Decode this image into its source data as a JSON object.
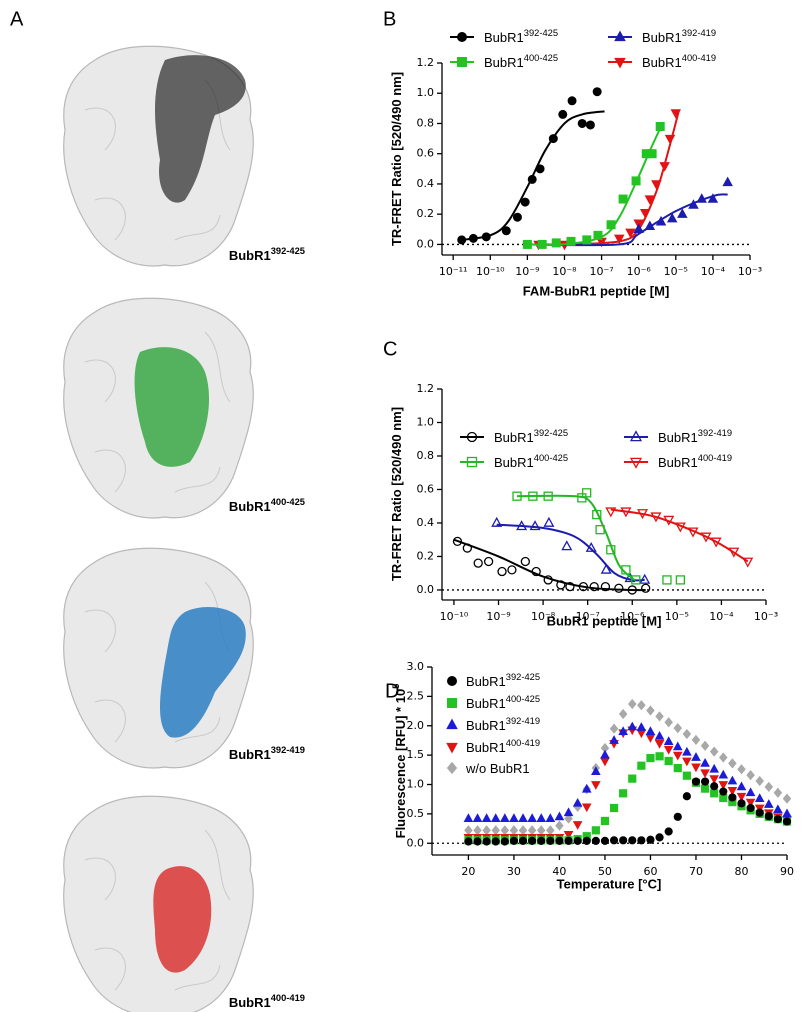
{
  "panel_a": {
    "panel_label": "A",
    "structures": [
      {
        "name": "BubR1",
        "superscript": "392-425",
        "color": "#1a1a1a"
      },
      {
        "name": "BubR1",
        "superscript": "400-425",
        "color": "#3aa845"
      },
      {
        "name": "BubR1",
        "superscript": "392-419",
        "color": "#2b7fc4"
      },
      {
        "name": "BubR1",
        "superscript": "400-419",
        "color": "#d93535"
      }
    ]
  },
  "chart_data": [
    {
      "type": "scatter",
      "panel_label": "B",
      "x_label": "FAM-BubR1 peptide [M]",
      "y_label": "TR-FRET Ratio [520/490 nm]",
      "xscale": "log",
      "xlim": [
        5e-12,
        0.001
      ],
      "ylim": [
        -0.07,
        1.2
      ],
      "zero_line": true,
      "filled": true,
      "xticks": [
        {
          "value": 1e-11,
          "label": "10⁻¹¹"
        },
        {
          "value": 1e-10,
          "label": "10⁻¹⁰"
        },
        {
          "value": 1e-09,
          "label": "10⁻⁹"
        },
        {
          "value": 1e-08,
          "label": "10⁻⁸"
        },
        {
          "value": 1e-07,
          "label": "10⁻⁷"
        },
        {
          "value": 1e-06,
          "label": "10⁻⁶"
        },
        {
          "value": 1e-05,
          "label": "10⁻⁵"
        },
        {
          "value": 0.0001,
          "label": "10⁻⁴"
        },
        {
          "value": 0.001,
          "label": "10⁻³"
        }
      ],
      "yticks": [
        {
          "value": 0,
          "label": "0.0"
        },
        0.2,
        0.4,
        0.6,
        0.8,
        {
          "value": 1,
          "label": "1.0"
        },
        1.2
      ],
      "series": [
        {
          "name": "BubR1",
          "name_superscript": "392-425",
          "color": "#000000",
          "marker": "circle",
          "x": [
            1.7e-11,
            3.5e-11,
            7.8e-11,
            2.7e-10,
            5.4e-10,
            8.7e-10,
            1.35e-09,
            2.2e-09,
            5e-09,
            9e-09,
            1.6e-08,
            3e-08,
            5e-08,
            7.6e-08
          ],
          "values": [
            0.03,
            0.04,
            0.05,
            0.09,
            0.18,
            0.28,
            0.43,
            0.5,
            0.7,
            0.86,
            0.95,
            0.8,
            0.79,
            1.01
          ],
          "fit": {
            "x": [
              1.7e-11,
              1e-10,
              3e-10,
              1e-09,
              3e-09,
              1e-08,
              3e-08,
              1.2e-07
            ],
            "values": [
              0.03,
              0.06,
              0.15,
              0.38,
              0.62,
              0.8,
              0.86,
              0.88
            ]
          }
        },
        {
          "name": "BubR1",
          "name_superscript": "400-425",
          "color": "#22c322",
          "marker": "square",
          "x": [
            1e-09,
            2.5e-09,
            6e-09,
            1.5e-08,
            4e-08,
            8e-08,
            1.8e-07,
            3.8e-07,
            8.5e-07,
            1.6e-06,
            2.3e-06,
            3.8e-06
          ],
          "values": [
            0.0,
            0.0,
            0.01,
            0.02,
            0.03,
            0.06,
            0.13,
            0.3,
            0.42,
            0.6,
            0.6,
            0.78
          ],
          "fit": {
            "x": [
              1e-09,
              1e-08,
              1e-07,
              3e-07,
              1e-06,
              2e-06,
              4e-06
            ],
            "values": [
              0.0,
              0.0,
              0.05,
              0.18,
              0.45,
              0.62,
              0.78
            ]
          }
        },
        {
          "name": "BubR1",
          "name_superscript": "392-419",
          "color": "#1c1cb0",
          "marker": "triangle-up",
          "x": [
            1e-06,
            2e-06,
            4e-06,
            8e-06,
            1.5e-05,
            3e-05,
            5e-05,
            0.0001,
            0.00025
          ],
          "values": [
            0.1,
            0.12,
            0.15,
            0.17,
            0.2,
            0.26,
            0.3,
            0.3,
            0.41
          ],
          "fit": {
            "x": [
              1e-09,
              3e-07,
              1e-06,
              1e-05,
              0.0001,
              0.00025
            ],
            "values": [
              0.0,
              0.0,
              0.07,
              0.22,
              0.32,
              0.33
            ]
          }
        },
        {
          "name": "BubR1",
          "name_superscript": "400-419",
          "color": "#e01414",
          "marker": "triangle-down",
          "x": [
            2e-09,
            1e-08,
            1e-07,
            3e-07,
            6e-07,
            1e-06,
            1.5e-06,
            2e-06,
            3e-06,
            5e-06,
            7e-06,
            1e-05
          ],
          "values": [
            0.0,
            0.0,
            0.02,
            0.04,
            0.08,
            0.14,
            0.21,
            0.3,
            0.4,
            0.52,
            0.7,
            0.87
          ],
          "fit": {
            "x": [
              2e-09,
              1e-08,
              3e-07,
              1e-06,
              3e-06,
              6e-06,
              1.2e-05
            ],
            "values": [
              0.0,
              0.0,
              0.02,
              0.1,
              0.35,
              0.6,
              0.88
            ]
          }
        }
      ]
    },
    {
      "type": "scatter",
      "panel_label": "C",
      "x_label": "BubR1 peptide [M]",
      "y_label": "TR-FRET Ratio [520/490 nm]",
      "xscale": "log",
      "xlim": [
        5.4e-11,
        0.001
      ],
      "ylim": [
        -0.06,
        1.2
      ],
      "zero_line": true,
      "filled": false,
      "xticks": [
        {
          "value": 1e-10,
          "label": "10⁻¹⁰"
        },
        {
          "value": 1e-09,
          "label": "10⁻⁹"
        },
        {
          "value": 1e-08,
          "label": "10⁻⁸"
        },
        {
          "value": 1e-07,
          "label": "10⁻⁷"
        },
        {
          "value": 1e-06,
          "label": "10⁻⁶"
        },
        {
          "value": 1e-05,
          "label": "10⁻⁵"
        },
        {
          "value": 0.0001,
          "label": "10⁻⁴"
        },
        {
          "value": 0.001,
          "label": "10⁻³"
        }
      ],
      "yticks": [
        {
          "value": 0,
          "label": "0.0"
        },
        0.2,
        0.4,
        0.6,
        0.8,
        {
          "value": 1,
          "label": "1.0"
        },
        1.2
      ],
      "series": [
        {
          "name": "BubR1",
          "name_superscript": "392-425",
          "color": "#000000",
          "marker": "circle",
          "x": [
            1.2e-10,
            2e-10,
            3.5e-10,
            6e-10,
            1.2e-09,
            2e-09,
            4e-09,
            7e-09,
            1.3e-08,
            2.5e-08,
            4e-08,
            8e-08,
            1.4e-07,
            2.5e-07,
            5e-07,
            1e-06,
            2e-06
          ],
          "values": [
            0.29,
            0.25,
            0.16,
            0.17,
            0.11,
            0.12,
            0.17,
            0.11,
            0.06,
            0.03,
            0.02,
            0.02,
            0.02,
            0.02,
            0.01,
            0.0,
            0.01
          ],
          "fit": {
            "x": [
              1e-10,
              1e-09,
              1e-08,
              1e-07,
              1e-06,
              2e-06
            ],
            "values": [
              0.3,
              0.2,
              0.08,
              0.015,
              0.0,
              0.0
            ]
          }
        },
        {
          "name": "BubR1",
          "name_superscript": "400-425",
          "color": "#22b822",
          "marker": "square",
          "x": [
            2.6e-09,
            5.9e-09,
            1.3e-08,
            7.4e-08,
            9.5e-08,
            1.6e-07,
            1.9e-07,
            3.3e-07,
            7.2e-07,
            1.2e-06,
            6e-06,
            1.2e-05
          ],
          "values": [
            0.56,
            0.56,
            0.56,
            0.55,
            0.58,
            0.45,
            0.36,
            0.24,
            0.12,
            0.06,
            0.06,
            0.06
          ],
          "fit": {
            "x": [
              2.6e-09,
              5e-08,
              1.2e-07,
              2.5e-07,
              5e-07,
              1e-06,
              1.2e-06
            ],
            "values": [
              0.56,
              0.56,
              0.52,
              0.35,
              0.15,
              0.07,
              0.06
            ]
          }
        },
        {
          "name": "BubR1",
          "name_superscript": "392-419",
          "color": "#1c1cb0",
          "marker": "triangle-up",
          "x": [
            9.1e-10,
            3.3e-09,
            6.6e-09,
            1.35e-08,
            3.4e-08,
            1.2e-07,
            2.6e-07,
            8.9e-07,
            1.9e-06
          ],
          "values": [
            0.4,
            0.38,
            0.38,
            0.4,
            0.26,
            0.25,
            0.12,
            0.07,
            0.06
          ],
          "fit": {
            "x": [
              9.1e-10,
              1e-08,
              5e-08,
              1.5e-07,
              4e-07,
              1e-06,
              1.9e-06
            ],
            "values": [
              0.39,
              0.37,
              0.32,
              0.22,
              0.1,
              0.06,
              0.06
            ]
          }
        },
        {
          "name": "BubR1",
          "name_superscript": "400-419",
          "color": "#e01414",
          "marker": "triangle-down",
          "x": [
            3.3e-07,
            7.2e-07,
            1.7e-06,
            3.4e-06,
            6.6e-06,
            1.2e-05,
            2.3e-05,
            4.5e-05,
            7.6e-05,
            0.00019,
            0.00039
          ],
          "values": [
            0.47,
            0.47,
            0.46,
            0.44,
            0.42,
            0.38,
            0.35,
            0.32,
            0.29,
            0.23,
            0.17
          ],
          "fit": {
            "x": [
              3.3e-07,
              3e-06,
              3e-05,
              0.0001,
              0.00039
            ],
            "values": [
              0.48,
              0.44,
              0.34,
              0.27,
              0.17
            ]
          }
        }
      ]
    },
    {
      "type": "scatter",
      "panel_label": "D",
      "x_label": "Temperature [°C]",
      "y_label": "Fluorescence  [RFU] * 10",
      "y_label_superscript": "5",
      "xlim": [
        12,
        90
      ],
      "ylim": [
        -0.2,
        3
      ],
      "zero_line": true,
      "filled": true,
      "xticks": [
        20,
        30,
        40,
        50,
        60,
        70,
        80,
        90
      ],
      "yticks": [
        {
          "value": 0,
          "label": "0.0"
        },
        0.5,
        {
          "value": 1,
          "label": "1.0"
        },
        1.5,
        {
          "value": 2,
          "label": "2.0"
        },
        2.5,
        {
          "value": 3,
          "label": "3.0"
        }
      ],
      "x": [
        20,
        22,
        24,
        26,
        28,
        30,
        32,
        34,
        36,
        38,
        40,
        42,
        44,
        46,
        48,
        50,
        52,
        54,
        56,
        58,
        60,
        62,
        64,
        66,
        68,
        70,
        72,
        74,
        76,
        78,
        80,
        82,
        84,
        86,
        88,
        90
      ],
      "series": [
        {
          "name": "BubR1",
          "name_superscript": "392-425",
          "color": "#000000",
          "marker": "circle",
          "values": [
            0.03,
            0.03,
            0.03,
            0.03,
            0.03,
            0.04,
            0.04,
            0.04,
            0.04,
            0.04,
            0.04,
            0.04,
            0.04,
            0.04,
            0.04,
            0.04,
            0.05,
            0.05,
            0.05,
            0.05,
            0.06,
            0.1,
            0.2,
            0.45,
            0.8,
            1.05,
            1.05,
            0.97,
            0.88,
            0.78,
            0.68,
            0.6,
            0.52,
            0.46,
            0.41,
            0.37
          ]
        },
        {
          "name": "BubR1",
          "name_superscript": "400-425",
          "color": "#22c322",
          "marker": "square",
          "values": [
            0.05,
            0.05,
            0.05,
            0.05,
            0.05,
            0.05,
            0.05,
            0.05,
            0.05,
            0.05,
            0.05,
            0.05,
            0.07,
            0.12,
            0.22,
            0.38,
            0.6,
            0.85,
            1.1,
            1.32,
            1.45,
            1.48,
            1.4,
            1.28,
            1.15,
            1.03,
            0.93,
            0.85,
            0.77,
            0.7,
            0.63,
            0.56,
            0.5,
            0.45,
            0.41,
            0.37
          ]
        },
        {
          "name": "BubR1",
          "name_superscript": "392-419",
          "color": "#1c1cd8",
          "marker": "triangle-up",
          "values": [
            0.42,
            0.42,
            0.42,
            0.42,
            0.42,
            0.42,
            0.42,
            0.42,
            0.42,
            0.42,
            0.45,
            0.52,
            0.68,
            0.92,
            1.22,
            1.5,
            1.75,
            1.9,
            1.98,
            1.97,
            1.9,
            1.82,
            1.73,
            1.64,
            1.55,
            1.46,
            1.36,
            1.26,
            1.16,
            1.06,
            0.96,
            0.86,
            0.76,
            0.66,
            0.57,
            0.5
          ]
        },
        {
          "name": "BubR1",
          "name_superscript": "400-419",
          "color": "#e01414",
          "marker": "triangle-down",
          "values": [
            0.1,
            0.1,
            0.1,
            0.1,
            0.1,
            0.1,
            0.1,
            0.1,
            0.1,
            0.1,
            0.1,
            0.15,
            0.32,
            0.62,
            1.0,
            1.4,
            1.7,
            1.88,
            1.93,
            1.88,
            1.8,
            1.7,
            1.6,
            1.5,
            1.4,
            1.3,
            1.2,
            1.1,
            1.0,
            0.9,
            0.8,
            0.7,
            0.6,
            0.52,
            0.45,
            0.4
          ]
        },
        {
          "name": "w/o BubR1",
          "color": "#a8a8a8",
          "marker": "diamond",
          "values": [
            0.22,
            0.22,
            0.22,
            0.22,
            0.22,
            0.22,
            0.22,
            0.22,
            0.22,
            0.22,
            0.3,
            0.42,
            0.62,
            0.92,
            1.28,
            1.62,
            1.95,
            2.2,
            2.37,
            2.35,
            2.26,
            2.16,
            2.06,
            1.96,
            1.86,
            1.76,
            1.66,
            1.56,
            1.46,
            1.36,
            1.26,
            1.16,
            1.06,
            0.96,
            0.86,
            0.76
          ]
        }
      ]
    }
  ]
}
